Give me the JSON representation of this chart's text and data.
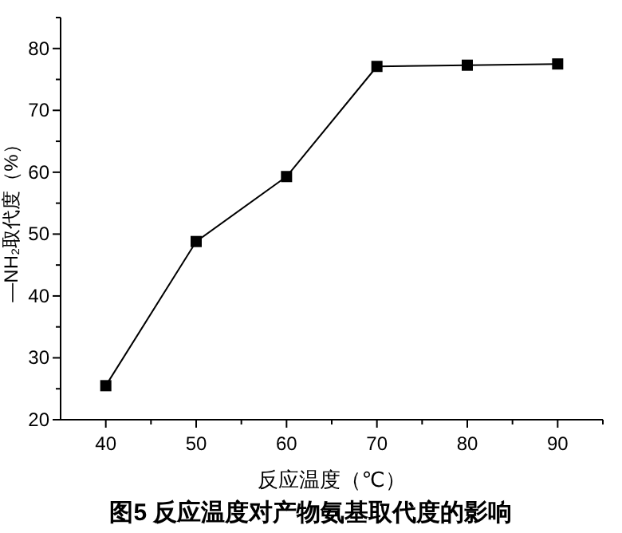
{
  "chart_data": {
    "type": "line",
    "title": "图5 反应温度对产物氨基取代度的影响",
    "xlabel": "反应温度（℃）",
    "ylabel": "—NH₂取代度（%）",
    "x": [
      40,
      50,
      60,
      70,
      80,
      90
    ],
    "series": [
      {
        "color": "#000000",
        "values": [
          25.5,
          48.8,
          59.3,
          77.1,
          77.3,
          77.5
        ]
      }
    ],
    "xlim": [
      35,
      95
    ],
    "ylim": [
      20,
      85
    ],
    "xticks": [
      40,
      {
        "value": 45,
        "label": null
      },
      50,
      {
        "value": 55,
        "label": null
      },
      60,
      {
        "value": 65,
        "label": null
      },
      70,
      {
        "value": 75,
        "label": null
      },
      80,
      {
        "value": 85,
        "label": null
      },
      90,
      {
        "value": 95,
        "label": null
      }
    ],
    "yticks": [
      20,
      {
        "value": 25,
        "label": null
      },
      30,
      {
        "value": 35,
        "label": null
      },
      40,
      {
        "value": 45,
        "label": null
      },
      50,
      {
        "value": 55,
        "label": null
      },
      60,
      {
        "value": 65,
        "label": null
      },
      70,
      {
        "value": 75,
        "label": null
      },
      80,
      {
        "value": 85,
        "label": null
      }
    ],
    "marker": "square",
    "line_style": "solid"
  }
}
